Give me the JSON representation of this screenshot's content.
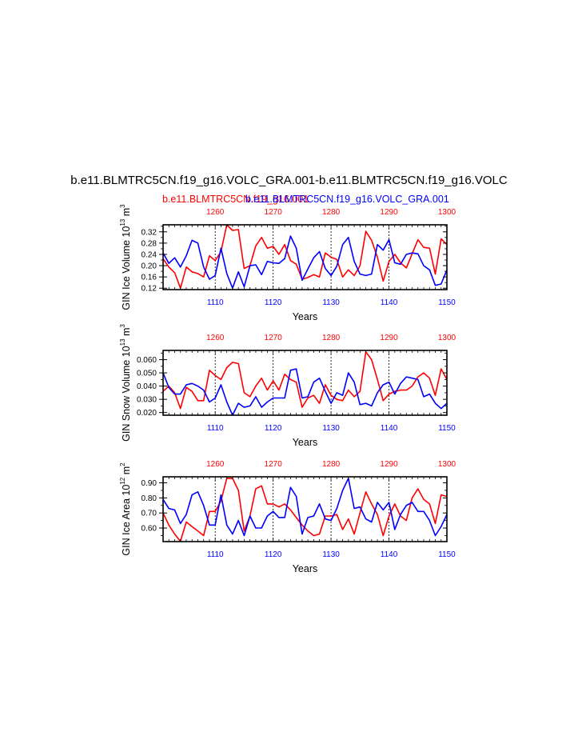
{
  "figure": {
    "title": "b.e11.BLMTRC5CN.f19_g16.VOLC_GRA.001-b.e11.BLMTRC5CN.f19_g16.VOLC",
    "legend_red": "b.e11.BLMTRC5CN.f19_g16.001",
    "legend_blue": "b.e11.BLMTRC5CN.f19_g16.VOLC_GRA.001",
    "color_red": "#ff0000",
    "color_blue": "#0000ff"
  },
  "chart_data": [
    {
      "type": "line",
      "ylabel_main": "GIN Ice Volume 10",
      "ylabel_exp1": "13",
      "ylabel_unit": " m",
      "ylabel_exp2": "3",
      "xlabel": "Years",
      "ylim": [
        0.115,
        0.345
      ],
      "yticks": [
        0.12,
        0.16,
        0.2,
        0.24,
        0.28,
        0.32
      ],
      "ytick_labels": [
        "0.12",
        "0.16",
        "0.20",
        "0.24",
        "0.28",
        "0.32"
      ],
      "ytick_minor": [
        0.14,
        0.18,
        0.22,
        0.26,
        0.3,
        0.34
      ],
      "bottom_axis": {
        "range": [
          1101,
          1150
        ],
        "ticks": [
          1110,
          1120,
          1130,
          1140,
          1150
        ],
        "tick_labels": [
          "1110",
          "1120",
          "1130",
          "1140",
          "1150"
        ]
      },
      "top_axis": {
        "range": [
          1251,
          1300
        ],
        "ticks": [
          1260,
          1270,
          1280,
          1290,
          1300
        ],
        "tick_labels": [
          "1260",
          "1270",
          "1280",
          "1290",
          "1300"
        ]
      },
      "vlines_bottom": [
        1110,
        1120,
        1130,
        1140
      ],
      "series": [
        {
          "color": "red",
          "axis": "top",
          "x_start": 1251,
          "values": [
            0.225,
            0.195,
            0.175,
            0.12,
            0.195,
            0.178,
            0.172,
            0.16,
            0.235,
            0.218,
            0.25,
            0.345,
            0.325,
            0.328,
            0.19,
            0.2,
            0.27,
            0.3,
            0.262,
            0.268,
            0.24,
            0.275,
            0.218,
            0.205,
            0.152,
            0.158,
            0.168,
            0.16,
            0.245,
            0.23,
            0.222,
            0.16,
            0.185,
            0.165,
            0.2,
            0.322,
            0.29,
            0.23,
            0.145,
            0.215,
            0.24,
            0.21,
            0.192,
            0.242,
            0.292,
            0.265,
            0.262,
            0.17,
            0.295,
            0.275
          ]
        },
        {
          "color": "blue",
          "axis": "bottom",
          "x_start": 1101,
          "values": [
            0.245,
            0.208,
            0.228,
            0.195,
            0.235,
            0.29,
            0.28,
            0.195,
            0.152,
            0.165,
            0.262,
            0.172,
            0.12,
            0.178,
            0.125,
            0.2,
            0.203,
            0.168,
            0.215,
            0.21,
            0.208,
            0.225,
            0.305,
            0.262,
            0.148,
            0.188,
            0.228,
            0.25,
            0.19,
            0.165,
            0.198,
            0.275,
            0.3,
            0.215,
            0.17,
            0.165,
            0.17,
            0.275,
            0.255,
            0.292,
            0.21,
            0.205,
            0.24,
            0.245,
            0.242,
            0.2,
            0.185,
            0.13,
            0.135,
            0.185
          ]
        }
      ]
    },
    {
      "type": "line",
      "ylabel_main": "GIN Snow Volume 10",
      "ylabel_exp1": "13",
      "ylabel_unit": " m",
      "ylabel_exp2": "3",
      "xlabel": "Years",
      "ylim": [
        0.018,
        0.067
      ],
      "yticks": [
        0.02,
        0.03,
        0.04,
        0.05,
        0.06
      ],
      "ytick_labels": [
        "0.020",
        "0.030",
        "0.040",
        "0.050",
        "0.060"
      ],
      "ytick_minor": [
        0.025,
        0.035,
        0.045,
        0.055,
        0.065
      ],
      "bottom_axis": {
        "range": [
          1101,
          1150
        ],
        "ticks": [
          1110,
          1120,
          1130,
          1140,
          1150
        ],
        "tick_labels": [
          "1110",
          "1120",
          "1130",
          "1140",
          "1150"
        ]
      },
      "top_axis": {
        "range": [
          1251,
          1300
        ],
        "ticks": [
          1260,
          1270,
          1280,
          1290,
          1300
        ],
        "tick_labels": [
          "1260",
          "1270",
          "1280",
          "1290",
          "1300"
        ]
      },
      "vlines_bottom": [
        1110,
        1120,
        1130,
        1140
      ],
      "series": [
        {
          "color": "red",
          "axis": "top",
          "x_start": 1251,
          "values": [
            0.036,
            0.04,
            0.035,
            0.023,
            0.039,
            0.036,
            0.029,
            0.029,
            0.052,
            0.048,
            0.045,
            0.054,
            0.058,
            0.057,
            0.035,
            0.032,
            0.04,
            0.046,
            0.037,
            0.044,
            0.037,
            0.049,
            0.045,
            0.043,
            0.024,
            0.031,
            0.033,
            0.027,
            0.041,
            0.033,
            0.03,
            0.029,
            0.037,
            0.032,
            0.036,
            0.066,
            0.06,
            0.045,
            0.029,
            0.034,
            0.036,
            0.037,
            0.037,
            0.04,
            0.047,
            0.05,
            0.046,
            0.033,
            0.053,
            0.045
          ]
        },
        {
          "color": "blue",
          "axis": "bottom",
          "x_start": 1101,
          "values": [
            0.05,
            0.039,
            0.034,
            0.034,
            0.041,
            0.042,
            0.04,
            0.037,
            0.028,
            0.031,
            0.041,
            0.028,
            0.018,
            0.027,
            0.024,
            0.025,
            0.032,
            0.024,
            0.028,
            0.031,
            0.031,
            0.031,
            0.052,
            0.053,
            0.031,
            0.032,
            0.043,
            0.046,
            0.036,
            0.027,
            0.035,
            0.033,
            0.05,
            0.043,
            0.026,
            0.027,
            0.025,
            0.035,
            0.041,
            0.043,
            0.034,
            0.042,
            0.047,
            0.046,
            0.045,
            0.032,
            0.034,
            0.027,
            0.023,
            0.027
          ]
        }
      ]
    },
    {
      "type": "line",
      "ylabel_main": "GIN Ice Area 10",
      "ylabel_exp1": "12",
      "ylabel_unit": " m",
      "ylabel_exp2": "2",
      "xlabel": "Years",
      "ylim": [
        0.51,
        0.94
      ],
      "yticks": [
        0.6,
        0.7,
        0.8,
        0.9
      ],
      "ytick_labels": [
        "0.60",
        "0.70",
        "0.80",
        "0.90"
      ],
      "ytick_minor": [
        0.55,
        0.65,
        0.75,
        0.85
      ],
      "bottom_axis": {
        "range": [
          1101,
          1150
        ],
        "ticks": [
          1110,
          1120,
          1130,
          1140,
          1150
        ],
        "tick_labels": [
          "1110",
          "1120",
          "1130",
          "1140",
          "1150"
        ]
      },
      "top_axis": {
        "range": [
          1251,
          1300
        ],
        "ticks": [
          1260,
          1270,
          1280,
          1290,
          1300
        ],
        "tick_labels": [
          "1260",
          "1270",
          "1280",
          "1290",
          "1300"
        ]
      },
      "vlines_bottom": [
        1110,
        1120,
        1130,
        1140
      ],
      "series": [
        {
          "color": "red",
          "axis": "top",
          "x_start": 1251,
          "values": [
            0.7,
            0.62,
            0.56,
            0.512,
            0.64,
            0.61,
            0.58,
            0.55,
            0.71,
            0.71,
            0.78,
            0.93,
            0.93,
            0.85,
            0.58,
            0.68,
            0.86,
            0.88,
            0.76,
            0.76,
            0.74,
            0.76,
            0.72,
            0.67,
            0.62,
            0.58,
            0.55,
            0.56,
            0.68,
            0.68,
            0.69,
            0.59,
            0.66,
            0.56,
            0.7,
            0.84,
            0.76,
            0.69,
            0.55,
            0.68,
            0.76,
            0.68,
            0.65,
            0.8,
            0.86,
            0.79,
            0.76,
            0.63,
            0.82,
            0.81
          ]
        },
        {
          "color": "blue",
          "axis": "bottom",
          "x_start": 1101,
          "values": [
            0.79,
            0.73,
            0.72,
            0.63,
            0.69,
            0.82,
            0.84,
            0.75,
            0.62,
            0.62,
            0.82,
            0.62,
            0.56,
            0.65,
            0.55,
            0.68,
            0.6,
            0.6,
            0.68,
            0.71,
            0.67,
            0.67,
            0.87,
            0.81,
            0.56,
            0.67,
            0.68,
            0.76,
            0.66,
            0.65,
            0.73,
            0.85,
            0.93,
            0.73,
            0.74,
            0.66,
            0.64,
            0.77,
            0.72,
            0.77,
            0.59,
            0.69,
            0.75,
            0.77,
            0.71,
            0.71,
            0.65,
            0.55,
            0.61,
            0.69
          ]
        }
      ]
    }
  ]
}
